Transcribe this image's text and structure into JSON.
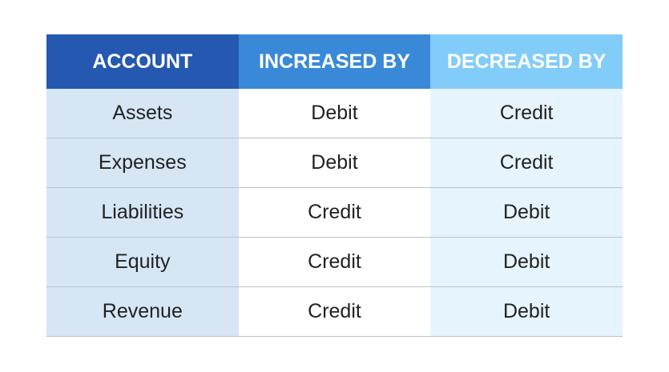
{
  "table": {
    "header": [
      "ACCOUNT",
      "INCREASED BY",
      "DECREASED BY"
    ],
    "rows": [
      [
        "Assets",
        "Debit",
        "Credit"
      ],
      [
        "Expenses",
        "Debit",
        "Credit"
      ],
      [
        "Liabilities",
        "Credit",
        "Debit"
      ],
      [
        "Equity",
        "Credit",
        "Debit"
      ],
      [
        "Revenue",
        "Credit",
        "Debit"
      ]
    ]
  }
}
